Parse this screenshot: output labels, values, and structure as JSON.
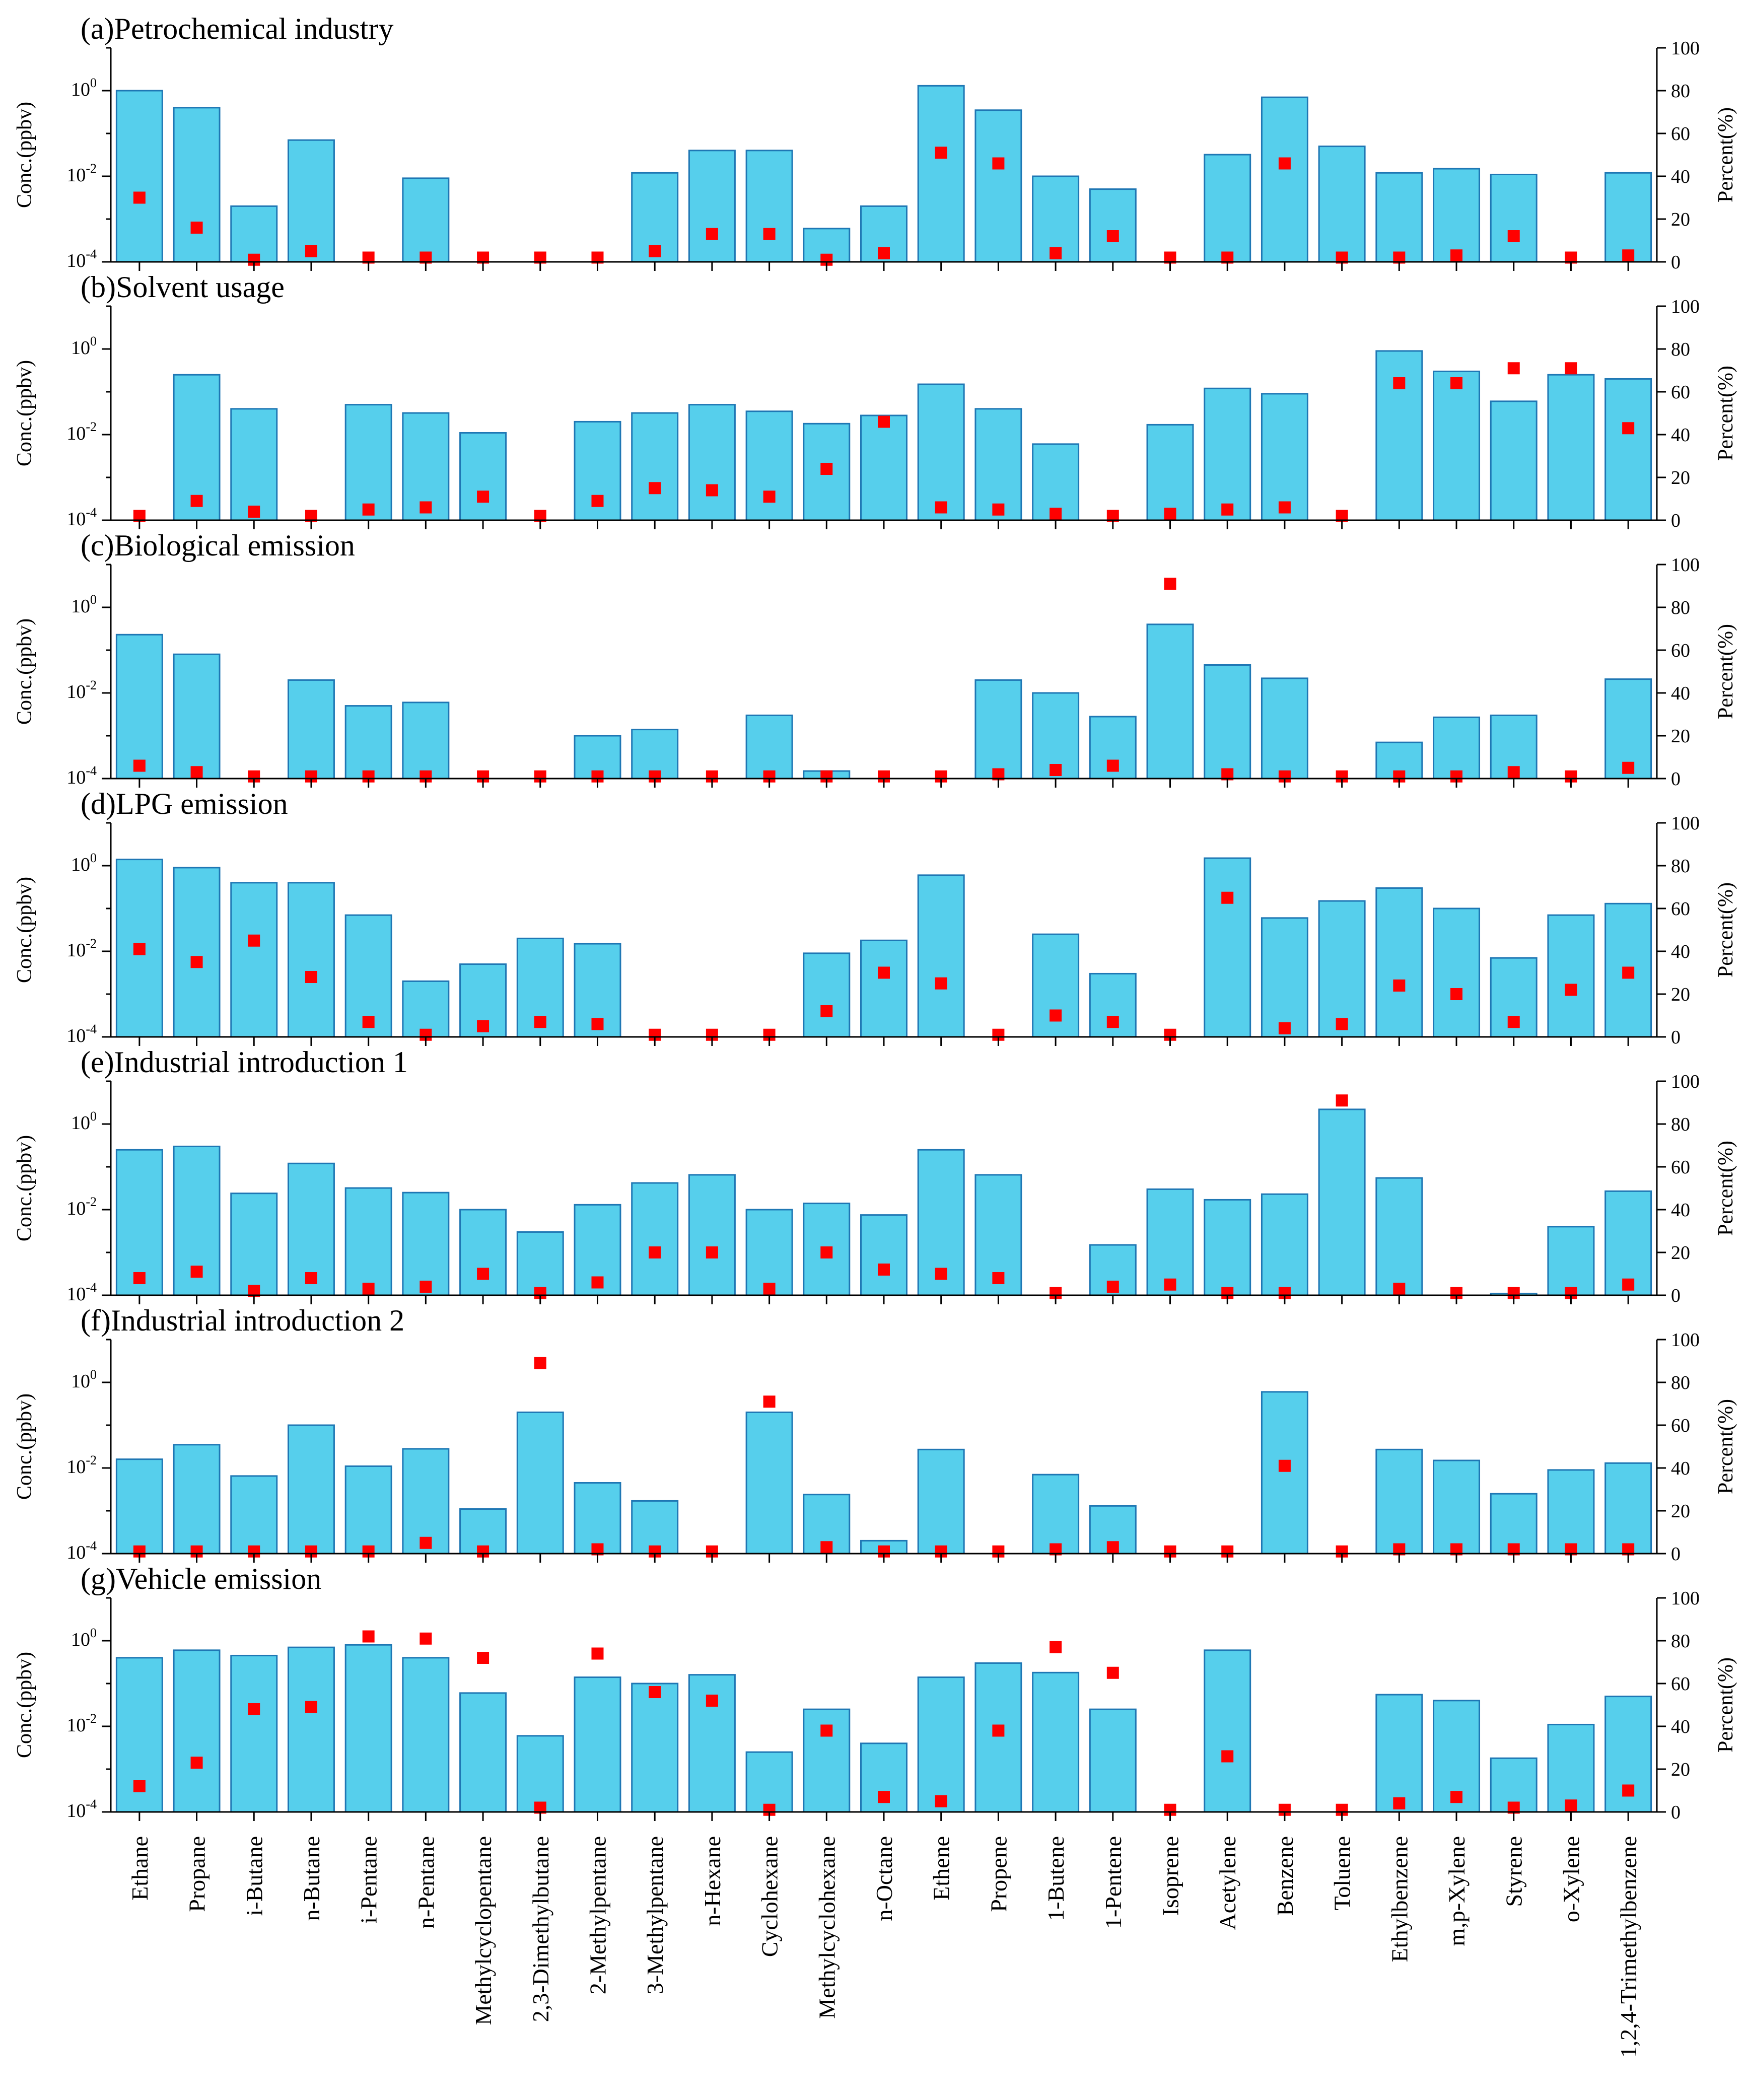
{
  "chart_data": {
    "type": "bar",
    "ylabel_left": "Conc.(ppbv)",
    "ylabel_right": "Percent(%)",
    "left_axis": {
      "scale": "log",
      "range": [
        0.0001,
        10
      ],
      "ticks": [
        "10^0",
        "10^-2",
        "10^-4"
      ]
    },
    "right_axis": {
      "range": [
        0,
        100
      ],
      "ticks": [
        "0",
        "20",
        "40",
        "60",
        "80",
        "100"
      ]
    },
    "categories": [
      "Ethane",
      "Propane",
      "i-Butane",
      "n-Butane",
      "i-Pentane",
      "n-Pentane",
      "Methylcyclopentane",
      "2,3-Dimethylbutane",
      "2-Methylpentane",
      "3-Methylpentane",
      "n-Hexane",
      "Cyclohexane",
      "Methylcyclohexane",
      "n-Octane",
      "Ethene",
      "Propene",
      "1-Butene",
      "1-Pentene",
      "Isoprene",
      "Acetylene",
      "Benzene",
      "Toluene",
      "Ethylbenzene",
      "m,p-Xylene",
      "Styrene",
      "o-Xylene",
      "1,2,4-Trimethylbenzene"
    ],
    "colors": {
      "bar_fill": "#56CFEC",
      "bar_edge": "#1F77B4",
      "percent_marker": "#FF0000"
    },
    "panels": [
      {
        "title": "(a)Petrochemical industry",
        "conc": [
          1.0,
          0.4,
          0.002,
          0.07,
          null,
          0.009,
          null,
          null,
          null,
          0.012,
          0.04,
          0.04,
          0.0006,
          0.002,
          1.3,
          0.35,
          0.01,
          0.005,
          null,
          0.032,
          0.7,
          0.05,
          0.012,
          0.015,
          0.011,
          null,
          0.012
        ],
        "percent": [
          30,
          16,
          1,
          5,
          2,
          2,
          2,
          2,
          2,
          5,
          13,
          13,
          1,
          4,
          51,
          46,
          4,
          12,
          2,
          2,
          46,
          2,
          2,
          3,
          12,
          2,
          3
        ]
      },
      {
        "title": "(b)Solvent usage",
        "conc": [
          null,
          0.25,
          0.04,
          null,
          0.05,
          0.032,
          0.011,
          null,
          0.02,
          0.032,
          0.05,
          0.035,
          0.018,
          0.028,
          0.15,
          0.04,
          0.006,
          null,
          0.017,
          0.12,
          0.09,
          null,
          0.9,
          0.3,
          0.06,
          0.25,
          0.2
        ],
        "percent": [
          2,
          9,
          4,
          2,
          5,
          6,
          11,
          2,
          9,
          15,
          14,
          11,
          24,
          46,
          6,
          5,
          3,
          2,
          3,
          5,
          6,
          2,
          64,
          64,
          71,
          71,
          43
        ]
      },
      {
        "title": "(c)Biological emission",
        "conc": [
          0.23,
          0.08,
          null,
          0.02,
          0.005,
          0.006,
          null,
          null,
          0.001,
          0.0014,
          null,
          0.003,
          0.00015,
          null,
          null,
          0.02,
          0.01,
          0.0028,
          0.4,
          0.045,
          0.022,
          null,
          0.0007,
          0.0027,
          0.003,
          null,
          0.021
        ],
        "percent": [
          6,
          3,
          1,
          1,
          1,
          1,
          1,
          1,
          1,
          1,
          1,
          1,
          1,
          1,
          1,
          2,
          4,
          6,
          91,
          2,
          1,
          1,
          1,
          1,
          3,
          1,
          5
        ]
      },
      {
        "title": "(d)LPG emission",
        "conc": [
          1.4,
          0.9,
          0.4,
          0.4,
          0.07,
          0.002,
          0.005,
          0.02,
          0.015,
          null,
          null,
          null,
          0.009,
          0.018,
          0.6,
          null,
          0.025,
          0.003,
          null,
          1.5,
          0.06,
          0.15,
          0.3,
          0.1,
          0.007,
          0.07,
          0.13
        ],
        "percent": [
          41,
          35,
          45,
          28,
          7,
          1,
          5,
          7,
          6,
          1,
          1,
          1,
          12,
          30,
          25,
          1,
          10,
          7,
          1,
          65,
          4,
          6,
          24,
          20,
          7,
          22,
          30
        ]
      },
      {
        "title": "(e)Industrial introduction 1",
        "conc": [
          0.25,
          0.3,
          0.024,
          0.12,
          0.032,
          0.025,
          0.01,
          0.003,
          0.013,
          0.042,
          0.065,
          0.01,
          0.014,
          0.0075,
          0.25,
          0.065,
          null,
          0.0015,
          0.03,
          0.017,
          0.023,
          2.2,
          0.055,
          null,
          0.00011,
          0.004,
          0.027
        ],
        "percent": [
          8,
          11,
          2,
          8,
          3,
          4,
          10,
          1,
          6,
          20,
          20,
          3,
          20,
          12,
          10,
          8,
          1,
          4,
          5,
          1,
          1,
          91,
          3,
          1,
          1,
          1,
          5
        ]
      },
      {
        "title": "(f)Industrial introduction 2",
        "conc": [
          0.016,
          0.035,
          0.0065,
          0.1,
          0.011,
          0.028,
          0.0011,
          0.2,
          0.0045,
          0.0017,
          null,
          0.2,
          0.0024,
          0.0002,
          0.027,
          null,
          0.007,
          0.0013,
          null,
          null,
          0.6,
          null,
          0.027,
          0.015,
          0.0025,
          0.009,
          0.013
        ],
        "percent": [
          1,
          1,
          1,
          1,
          1,
          5,
          1,
          89,
          2,
          1,
          1,
          71,
          3,
          1,
          1,
          1,
          2,
          3,
          1,
          1,
          41,
          1,
          2,
          2,
          2,
          2,
          2
        ]
      },
      {
        "title": "(g)Vehicle emission",
        "conc": [
          0.4,
          0.6,
          0.45,
          0.7,
          0.8,
          0.4,
          0.06,
          0.006,
          0.14,
          0.1,
          0.16,
          0.0025,
          0.025,
          0.004,
          0.14,
          0.3,
          0.18,
          0.025,
          null,
          0.6,
          null,
          null,
          0.055,
          0.04,
          0.0018,
          0.011,
          0.05
        ],
        "percent": [
          12,
          23,
          48,
          49,
          82,
          81,
          72,
          2,
          74,
          56,
          52,
          1,
          38,
          7,
          5,
          38,
          77,
          65,
          1,
          26,
          1,
          1,
          4,
          7,
          2,
          3,
          10
        ]
      }
    ]
  }
}
